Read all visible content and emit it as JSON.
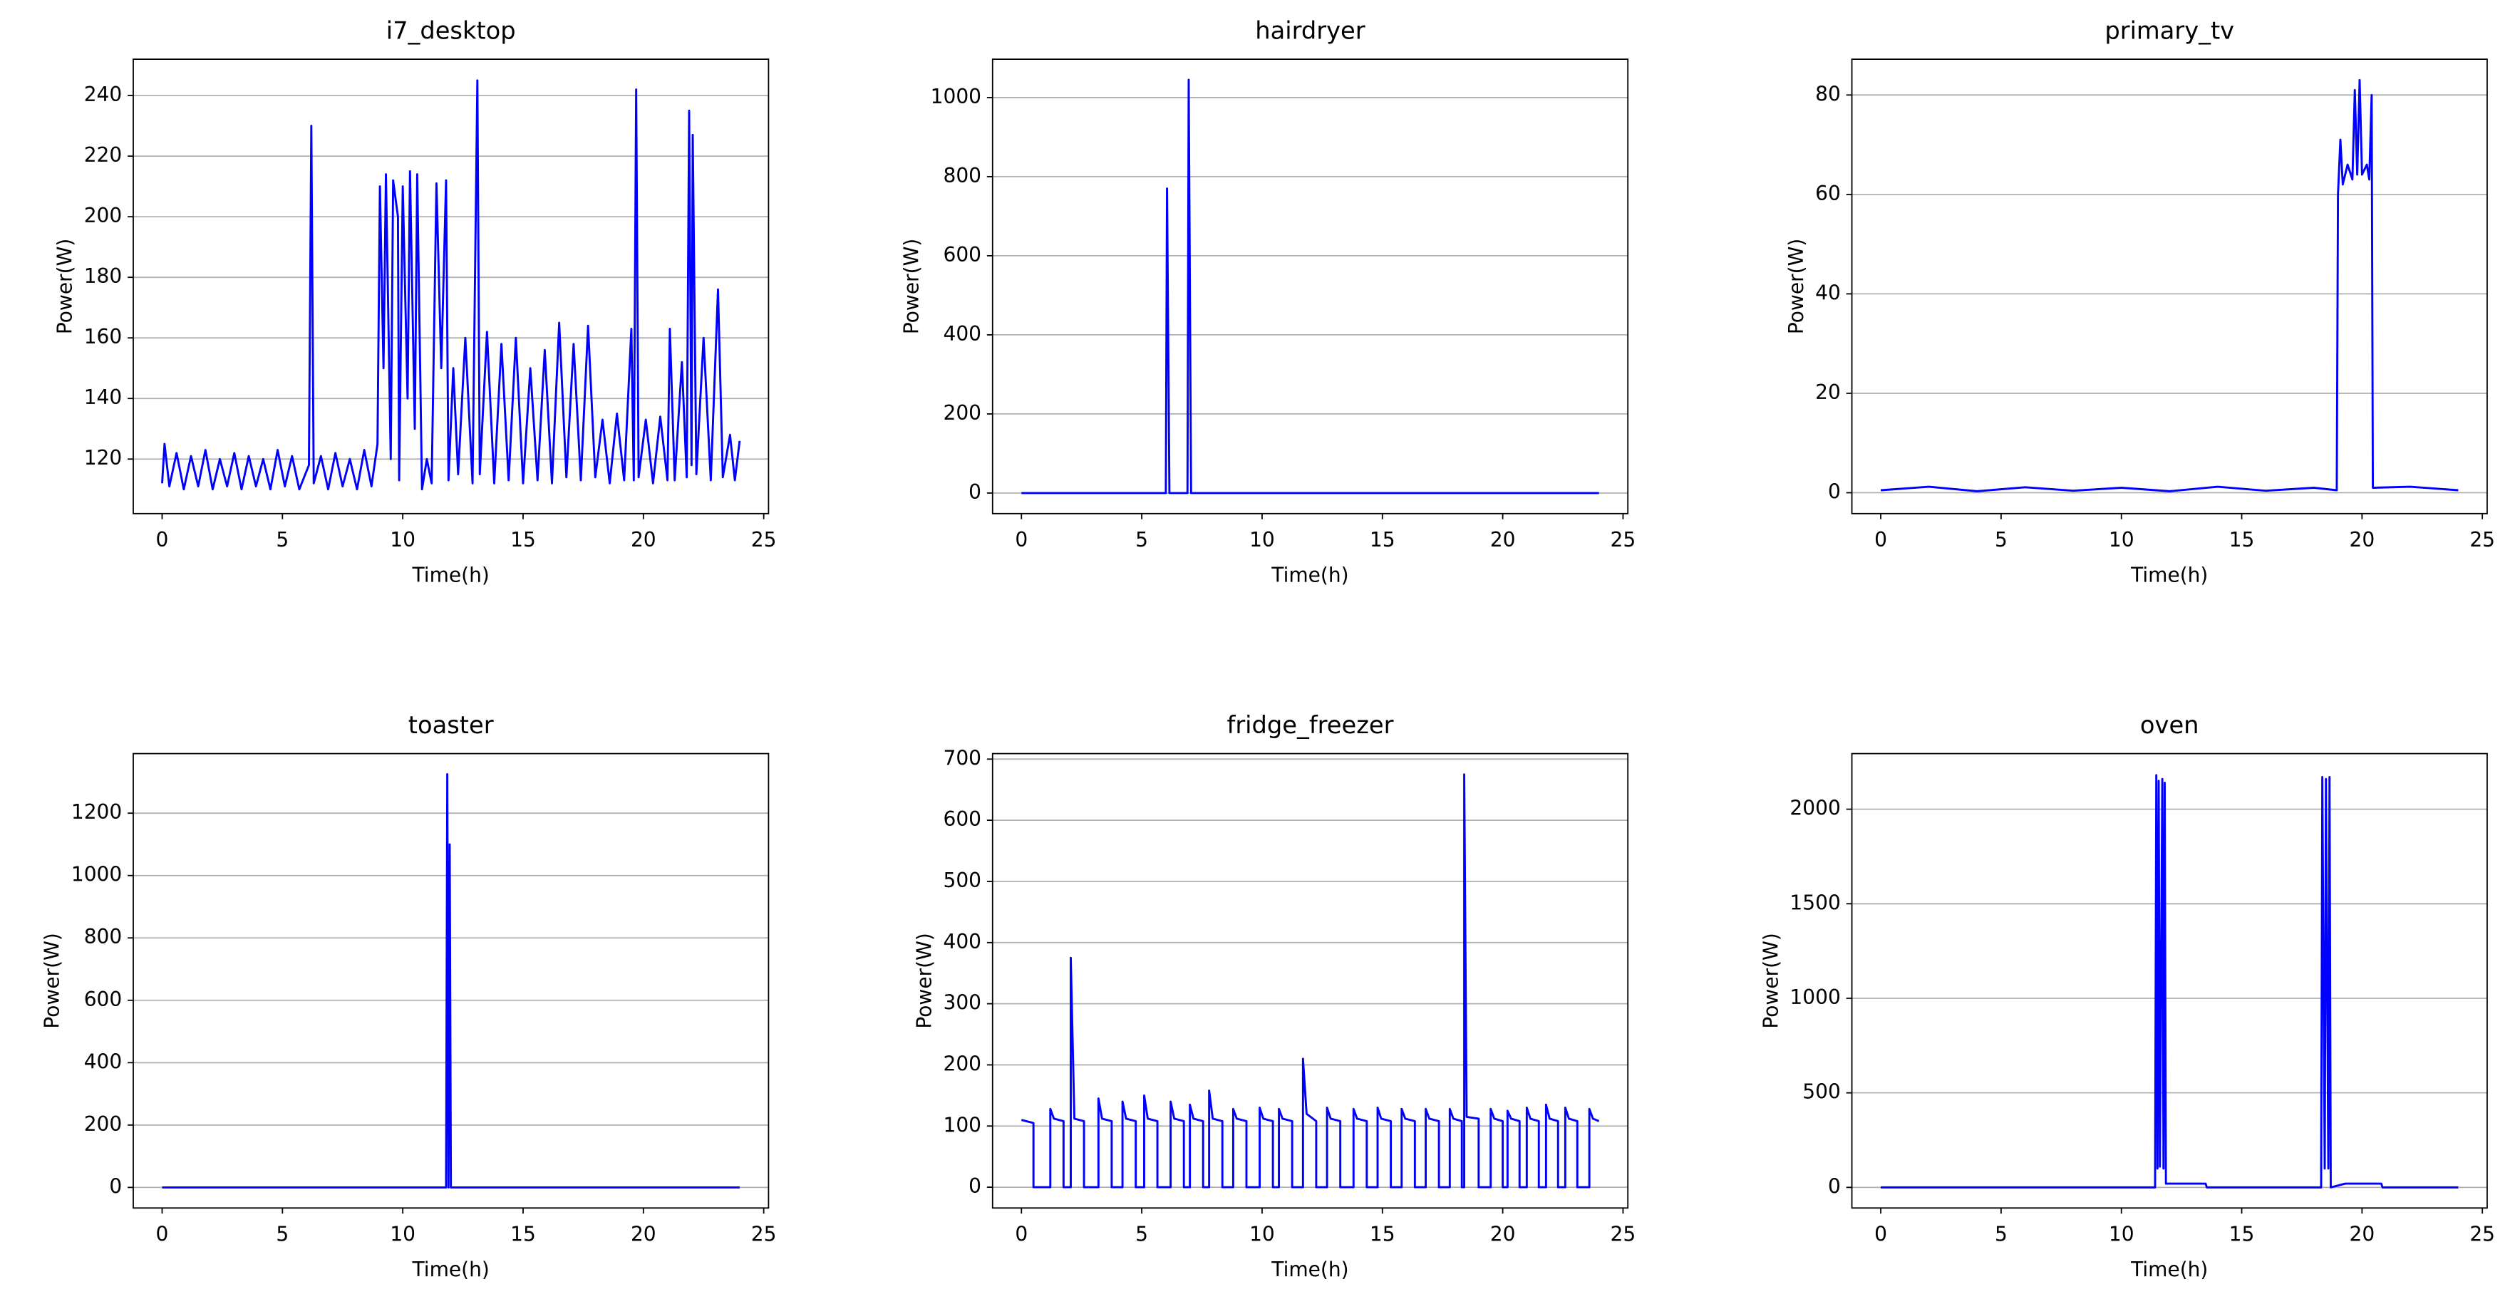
{
  "chart_data": [
    {
      "type": "line",
      "title": "i7_desktop",
      "xlabel": "Time(h)",
      "ylabel": "Power(W)",
      "color": "#0000ff",
      "grid": true,
      "xlim": [
        -1.2,
        25.2
      ],
      "xticks": [
        0,
        5,
        10,
        15,
        20,
        25
      ],
      "ylim": [
        102,
        252
      ],
      "yticks": [
        120,
        140,
        160,
        180,
        200,
        220,
        240
      ],
      "x": [
        0,
        0.1,
        0.3,
        0.6,
        0.9,
        1.2,
        1.5,
        1.8,
        2.1,
        2.4,
        2.7,
        3.0,
        3.3,
        3.6,
        3.9,
        4.2,
        4.5,
        4.8,
        5.1,
        5.4,
        5.7,
        6.1,
        6.2,
        6.3,
        6.6,
        6.9,
        7.2,
        7.5,
        7.8,
        8.1,
        8.4,
        8.7,
        8.95,
        9.05,
        9.2,
        9.3,
        9.5,
        9.6,
        9.8,
        9.85,
        10.0,
        10.2,
        10.3,
        10.5,
        10.6,
        10.8,
        11.0,
        11.2,
        11.4,
        11.6,
        11.8,
        11.9,
        12.1,
        12.3,
        12.6,
        12.9,
        13.1,
        13.2,
        13.5,
        13.8,
        14.1,
        14.4,
        14.7,
        15.0,
        15.3,
        15.6,
        15.9,
        16.2,
        16.5,
        16.8,
        17.1,
        17.4,
        17.7,
        18.0,
        18.3,
        18.6,
        18.9,
        19.2,
        19.5,
        19.6,
        19.7,
        19.8,
        20.1,
        20.4,
        20.7,
        21.0,
        21.1,
        21.3,
        21.6,
        21.8,
        21.9,
        22.0,
        22.05,
        22.2,
        22.5,
        22.8,
        23.1,
        23.3,
        23.6,
        23.8,
        24.0
      ],
      "values": [
        112,
        125,
        111,
        122,
        110,
        121,
        111,
        123,
        110,
        120,
        111,
        122,
        110,
        121,
        111,
        120,
        110,
        123,
        111,
        121,
        110,
        118,
        230,
        112,
        121,
        110,
        122,
        111,
        120,
        110,
        123,
        111,
        125,
        210,
        150,
        214,
        120,
        212,
        200,
        113,
        210,
        140,
        215,
        130,
        214,
        110,
        120,
        112,
        211,
        150,
        212,
        113,
        150,
        115,
        160,
        112,
        245,
        115,
        162,
        112,
        158,
        113,
        160,
        112,
        150,
        113,
        156,
        112,
        165,
        114,
        158,
        113,
        164,
        114,
        133,
        112,
        135,
        113,
        163,
        113,
        242,
        114,
        133,
        112,
        134,
        113,
        163,
        113,
        152,
        114,
        235,
        118,
        227,
        115,
        160,
        113,
        176,
        114,
        128,
        113,
        126
      ]
    },
    {
      "type": "line",
      "title": "hairdryer",
      "xlabel": "Time(h)",
      "ylabel": "Power(W)",
      "color": "#0000ff",
      "grid": true,
      "xlim": [
        -1.2,
        25.2
      ],
      "xticks": [
        0,
        5,
        10,
        15,
        20,
        25
      ],
      "ylim": [
        -52,
        1097
      ],
      "yticks": [
        0,
        200,
        400,
        600,
        800,
        1000
      ],
      "x": [
        0,
        6.0,
        6.05,
        6.15,
        6.9,
        6.95,
        7.05,
        24
      ],
      "values": [
        0,
        0,
        770,
        0,
        0,
        1045,
        0,
        0
      ]
    },
    {
      "type": "line",
      "title": "primary_tv",
      "xlabel": "Time(h)",
      "ylabel": "Power(W)",
      "color": "#0000ff",
      "grid": true,
      "xlim": [
        -1.2,
        25.2
      ],
      "xticks": [
        0,
        5,
        10,
        15,
        20,
        25
      ],
      "ylim": [
        -4.2,
        87.2
      ],
      "yticks": [
        0,
        20,
        40,
        60,
        80
      ],
      "x": [
        0,
        2,
        4,
        6,
        8,
        10,
        12,
        14,
        16,
        18,
        18.95,
        19.0,
        19.1,
        19.2,
        19.4,
        19.6,
        19.7,
        19.8,
        19.9,
        20.0,
        20.2,
        20.3,
        20.4,
        20.45,
        22,
        24
      ],
      "values": [
        0.5,
        1.2,
        0.3,
        1.1,
        0.4,
        1.0,
        0.3,
        1.2,
        0.4,
        1.0,
        0.5,
        60,
        71,
        62,
        66,
        63,
        81,
        64,
        83,
        64,
        66,
        63,
        80,
        1,
        1.2,
        0.5
      ]
    },
    {
      "type": "line",
      "title": "toaster",
      "xlabel": "Time(h)",
      "ylabel": "Power(W)",
      "color": "#0000ff",
      "grid": true,
      "xlim": [
        -1.2,
        25.2
      ],
      "xticks": [
        0,
        5,
        10,
        15,
        20,
        25
      ],
      "ylim": [
        -66,
        1391
      ],
      "yticks": [
        0,
        200,
        400,
        600,
        800,
        1000,
        1200
      ],
      "x": [
        0,
        11.8,
        11.85,
        11.9,
        11.95,
        12.0,
        24
      ],
      "values": [
        0,
        0,
        1325,
        0,
        1100,
        0,
        0
      ]
    },
    {
      "type": "line",
      "title": "fridge_freezer",
      "xlabel": "Time(h)",
      "ylabel": "Power(W)",
      "color": "#0000ff",
      "grid": true,
      "xlim": [
        -1.2,
        25.2
      ],
      "xticks": [
        0,
        5,
        10,
        15,
        20,
        25
      ],
      "ylim": [
        -34,
        709
      ],
      "yticks": [
        0,
        100,
        200,
        300,
        400,
        500,
        600,
        700
      ],
      "x": [
        0,
        0.5,
        0.5,
        1.2,
        1.2,
        1.35,
        1.75,
        1.75,
        2.05,
        2.05,
        2.2,
        2.6,
        2.6,
        3.2,
        3.2,
        3.35,
        3.75,
        3.75,
        4.2,
        4.2,
        4.35,
        4.75,
        4.75,
        5.1,
        5.1,
        5.25,
        5.65,
        5.65,
        6.2,
        6.2,
        6.35,
        6.75,
        6.75,
        7.0,
        7.0,
        7.15,
        7.55,
        7.55,
        7.8,
        7.8,
        7.95,
        8.35,
        8.35,
        8.8,
        8.8,
        8.95,
        9.35,
        9.35,
        9.9,
        9.9,
        10.05,
        10.45,
        10.45,
        10.7,
        10.7,
        10.85,
        11.25,
        11.25,
        11.7,
        11.7,
        11.85,
        12.25,
        12.25,
        12.7,
        12.7,
        12.85,
        13.25,
        13.25,
        13.8,
        13.8,
        13.95,
        14.35,
        14.35,
        14.8,
        14.8,
        14.95,
        15.35,
        15.35,
        15.8,
        15.8,
        15.95,
        16.35,
        16.35,
        16.8,
        16.8,
        16.95,
        17.35,
        17.35,
        17.8,
        17.8,
        17.95,
        18.3,
        18.3,
        18.4,
        18.4,
        18.5,
        19.0,
        19.0,
        19.5,
        19.5,
        19.65,
        20.0,
        20.0,
        20.2,
        20.2,
        20.35,
        20.7,
        20.7,
        21.0,
        21.0,
        21.15,
        21.5,
        21.5,
        21.8,
        21.8,
        21.95,
        22.3,
        22.3,
        22.6,
        22.6,
        22.75,
        23.1,
        23.1,
        23.6,
        23.6,
        23.75,
        24.0
      ],
      "values": [
        110,
        105,
        0,
        0,
        128,
        112,
        108,
        0,
        0,
        375,
        112,
        108,
        0,
        0,
        145,
        112,
        108,
        0,
        0,
        140,
        112,
        108,
        0,
        0,
        150,
        112,
        108,
        0,
        0,
        140,
        112,
        108,
        0,
        0,
        135,
        112,
        108,
        0,
        0,
        158,
        112,
        108,
        0,
        0,
        128,
        112,
        108,
        0,
        0,
        130,
        112,
        108,
        0,
        0,
        128,
        112,
        108,
        0,
        0,
        210,
        120,
        108,
        0,
        0,
        130,
        112,
        108,
        0,
        0,
        128,
        112,
        108,
        0,
        0,
        130,
        112,
        108,
        0,
        0,
        128,
        112,
        108,
        0,
        0,
        128,
        112,
        108,
        0,
        0,
        128,
        112,
        108,
        0,
        0,
        675,
        115,
        112,
        0,
        0,
        128,
        112,
        108,
        0,
        0,
        125,
        112,
        108,
        0,
        0,
        130,
        112,
        108,
        0,
        0,
        135,
        112,
        108,
        0,
        0,
        130,
        112,
        108,
        0,
        0,
        128,
        112,
        108
      ]
    },
    {
      "type": "line",
      "title": "oven",
      "xlabel": "Time(h)",
      "ylabel": "Power(W)",
      "color": "#0000ff",
      "grid": true,
      "xlim": [
        -1.2,
        25.2
      ],
      "xticks": [
        0,
        5,
        10,
        15,
        20,
        25
      ],
      "ylim": [
        -109,
        2294
      ],
      "yticks": [
        0,
        500,
        1000,
        1500,
        2000
      ],
      "x": [
        0,
        11.4,
        11.45,
        11.5,
        11.55,
        11.6,
        11.7,
        11.75,
        11.8,
        11.85,
        13.5,
        13.55,
        18.3,
        18.35,
        18.45,
        18.5,
        18.6,
        18.65,
        18.7,
        19.3,
        20.8,
        20.85,
        24
      ],
      "values": [
        0,
        0,
        2180,
        100,
        2150,
        110,
        2160,
        100,
        2140,
        20,
        20,
        0,
        0,
        2170,
        100,
        2160,
        100,
        2170,
        0,
        20,
        20,
        0,
        0
      ]
    }
  ]
}
